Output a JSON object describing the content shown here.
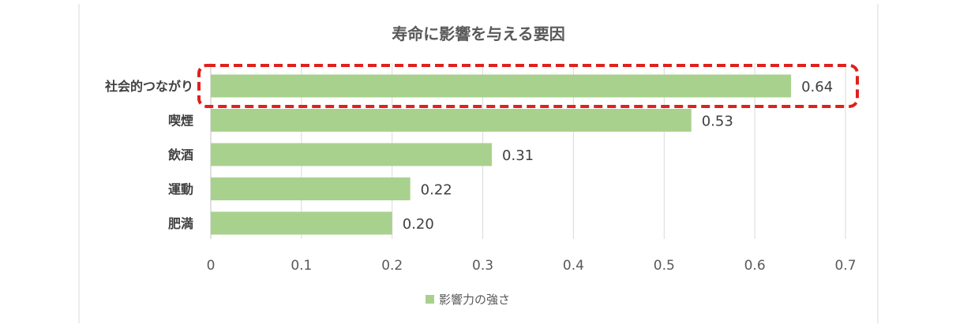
{
  "chart_data": {
    "type": "bar",
    "orientation": "horizontal",
    "title": "寿命に影響を与える要因",
    "categories": [
      "社会的つながり",
      "喫煙",
      "飲酒",
      "運動",
      "肥満"
    ],
    "series": [
      {
        "name": "影響力の強さ",
        "values": [
          0.64,
          0.53,
          0.31,
          0.22,
          0.2
        ],
        "data_labels": [
          "0.64",
          "0.53",
          "0.31",
          "0.22",
          "0.20"
        ],
        "color": "#a9d18e"
      }
    ],
    "xlim": [
      0,
      0.7
    ],
    "xticks": [
      "0",
      "0.1",
      "0.2",
      "0.3",
      "0.4",
      "0.5",
      "0.6",
      "0.7"
    ],
    "grid": true,
    "legend_position": "bottom",
    "highlight": {
      "category": "社会的つながり",
      "style": "dashed-red-rounded-box",
      "color": "#e0201b"
    }
  }
}
